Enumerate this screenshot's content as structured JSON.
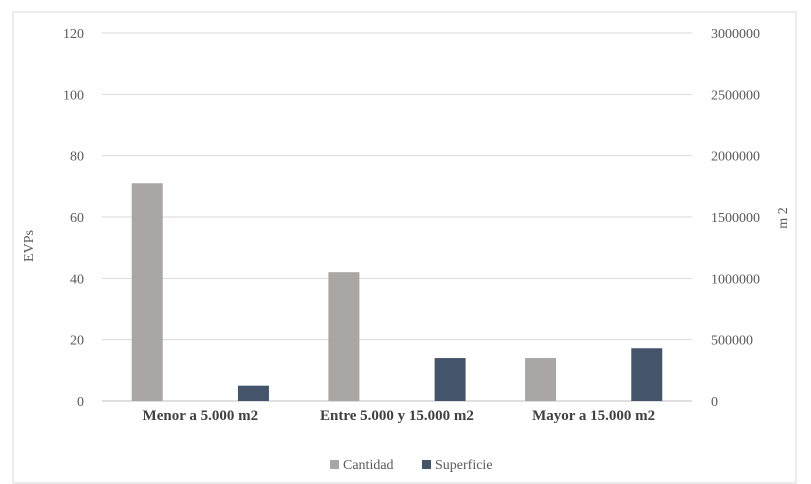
{
  "chart_data": {
    "type": "bar",
    "categories": [
      "Menor  a 5.000 m2",
      "Entre  5.000 y 15.000 m2",
      "Mayor  a 15.000 m2"
    ],
    "series": [
      {
        "name": "Cantidad",
        "axis": "left",
        "color": "#a9a6a5",
        "values": [
          71,
          42,
          14
        ]
      },
      {
        "name": "Superficie",
        "axis": "right",
        "color": "#44546a",
        "values": [
          125000,
          350000,
          430000
        ]
      }
    ],
    "ylabel": "EVPs",
    "y2label": "m 2",
    "ylim": [
      0,
      120
    ],
    "y2lim": [
      0,
      3000000
    ],
    "yticks": [
      "0",
      "20",
      "40",
      "60",
      "80",
      "100",
      "120"
    ],
    "y2ticks": [
      "0",
      "500000",
      "1000000",
      "1500000",
      "2000000",
      "2500000",
      "3000000"
    ],
    "grid": true,
    "legend": "bottom"
  }
}
